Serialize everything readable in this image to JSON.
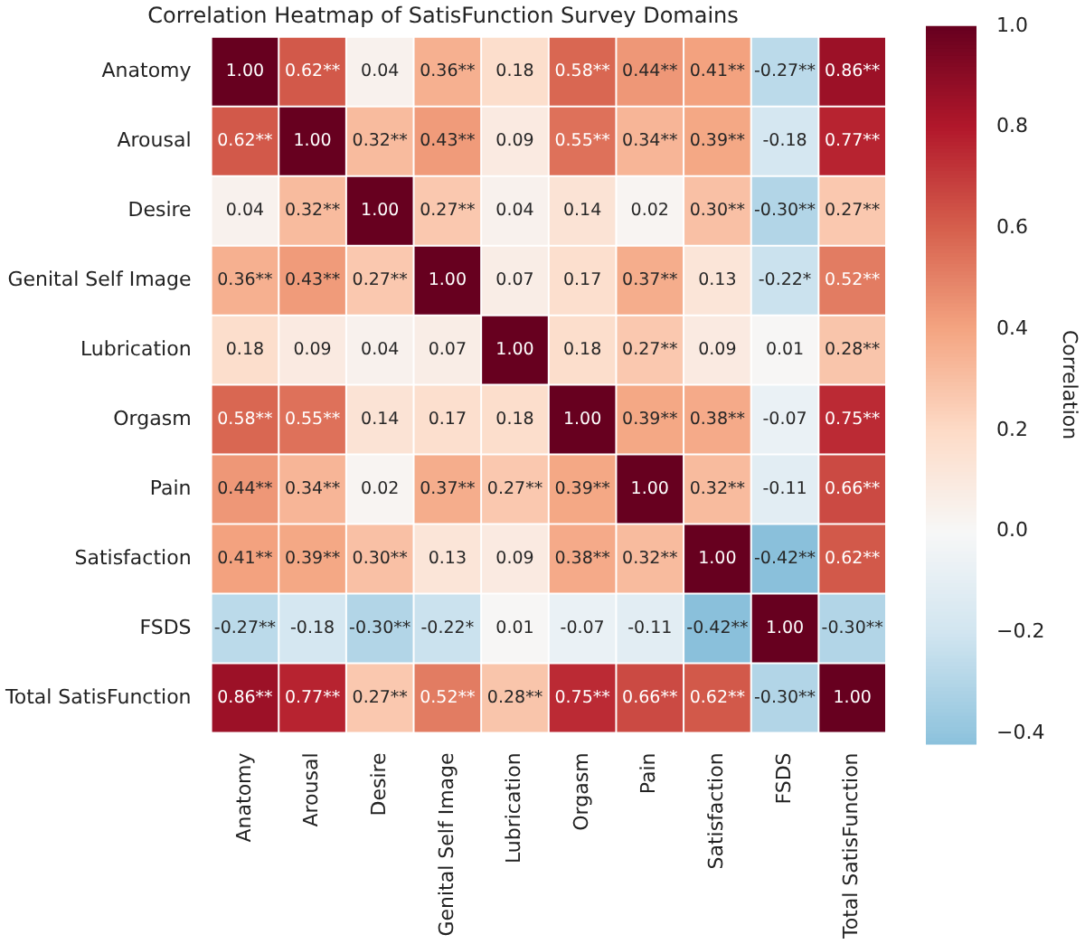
{
  "chart_data": {
    "type": "heatmap",
    "title": "Correlation Heatmap of SatisFunction Survey Domains",
    "clabel": "Correlation",
    "categories": [
      "Anatomy",
      "Arousal",
      "Desire",
      "Genital Self Image",
      "Lubrication",
      "Orgasm",
      "Pain",
      "Satisfaction",
      "FSDS",
      "Total SatisFunction"
    ],
    "y_categories": [
      "Anatomy",
      "Arousal",
      "Desire",
      "Genital Self Image",
      "Lubrication",
      "Orgasm",
      "Pain",
      "Satisfaction",
      "FSDS",
      "Total SatisFunction"
    ],
    "cells": [
      [
        1.0,
        0.62,
        0.04,
        0.36,
        0.18,
        0.58,
        0.44,
        0.41,
        -0.27,
        0.86
      ],
      [
        0.62,
        1.0,
        0.32,
        0.43,
        0.09,
        0.55,
        0.34,
        0.39,
        -0.18,
        0.77
      ],
      [
        0.04,
        0.32,
        1.0,
        0.27,
        0.04,
        0.14,
        0.02,
        0.3,
        -0.3,
        0.27
      ],
      [
        0.36,
        0.43,
        0.27,
        1.0,
        0.07,
        0.17,
        0.37,
        0.13,
        -0.22,
        0.52
      ],
      [
        0.18,
        0.09,
        0.04,
        0.07,
        1.0,
        0.18,
        0.27,
        0.09,
        0.01,
        0.28
      ],
      [
        0.58,
        0.55,
        0.14,
        0.17,
        0.18,
        1.0,
        0.39,
        0.38,
        -0.07,
        0.75
      ],
      [
        0.44,
        0.34,
        0.02,
        0.37,
        0.27,
        0.39,
        1.0,
        0.32,
        -0.11,
        0.66
      ],
      [
        0.41,
        0.39,
        0.3,
        0.13,
        0.09,
        0.38,
        0.32,
        1.0,
        -0.42,
        0.62
      ],
      [
        -0.27,
        -0.18,
        -0.3,
        -0.22,
        0.01,
        -0.07,
        -0.11,
        -0.42,
        1.0,
        -0.3
      ],
      [
        0.86,
        0.77,
        0.27,
        0.52,
        0.28,
        0.75,
        0.66,
        0.62,
        -0.3,
        1.0
      ]
    ],
    "cell_labels": [
      [
        "1.00",
        "0.62**",
        "0.04",
        "0.36**",
        "0.18",
        "0.58**",
        "0.44**",
        "0.41**",
        "-0.27**",
        "0.86**"
      ],
      [
        "0.62**",
        "1.00",
        "0.32**",
        "0.43**",
        "0.09",
        "0.55**",
        "0.34**",
        "0.39**",
        "-0.18",
        "0.77**"
      ],
      [
        "0.04",
        "0.32**",
        "1.00",
        "0.27**",
        "0.04",
        "0.14",
        "0.02",
        "0.30**",
        "-0.30**",
        "0.27**"
      ],
      [
        "0.36**",
        "0.43**",
        "0.27**",
        "1.00",
        "0.07",
        "0.17",
        "0.37**",
        "0.13",
        "-0.22*",
        "0.52**"
      ],
      [
        "0.18",
        "0.09",
        "0.04",
        "0.07",
        "1.00",
        "0.18",
        "0.27**",
        "0.09",
        "0.01",
        "0.28**"
      ],
      [
        "0.58**",
        "0.55**",
        "0.14",
        "0.17",
        "0.18",
        "1.00",
        "0.39**",
        "0.38**",
        "-0.07",
        "0.75**"
      ],
      [
        "0.44**",
        "0.34**",
        "0.02",
        "0.37**",
        "0.27**",
        "0.39**",
        "1.00",
        "0.32**",
        "-0.11",
        "0.66**"
      ],
      [
        "0.41**",
        "0.39**",
        "0.30**",
        "0.13",
        "0.09",
        "0.38**",
        "0.32**",
        "1.00",
        "-0.42**",
        "0.62**"
      ],
      [
        "-0.27**",
        "-0.18",
        "-0.30**",
        "-0.22*",
        "0.01",
        "-0.07",
        "-0.11",
        "-0.42**",
        "1.00",
        "-0.30**"
      ],
      [
        "0.86**",
        "0.77**",
        "0.27**",
        "0.52**",
        "0.28**",
        "0.75**",
        "0.66**",
        "0.62**",
        "-0.30**",
        "1.00"
      ]
    ],
    "clim": [
      -0.42,
      1.0
    ],
    "cticks": [
      {
        "value": -0.4,
        "label": "−0.4"
      },
      {
        "value": -0.2,
        "label": "−0.2"
      },
      {
        "value": 0,
        "label": "0.0"
      },
      {
        "value": 0.2,
        "label": "0.2"
      },
      {
        "value": 0.4,
        "label": "0.4"
      },
      {
        "value": 0.6,
        "label": "0.6"
      },
      {
        "value": 0.8,
        "label": "0.8"
      },
      {
        "value": 1.0,
        "label": "1.0"
      }
    ]
  }
}
